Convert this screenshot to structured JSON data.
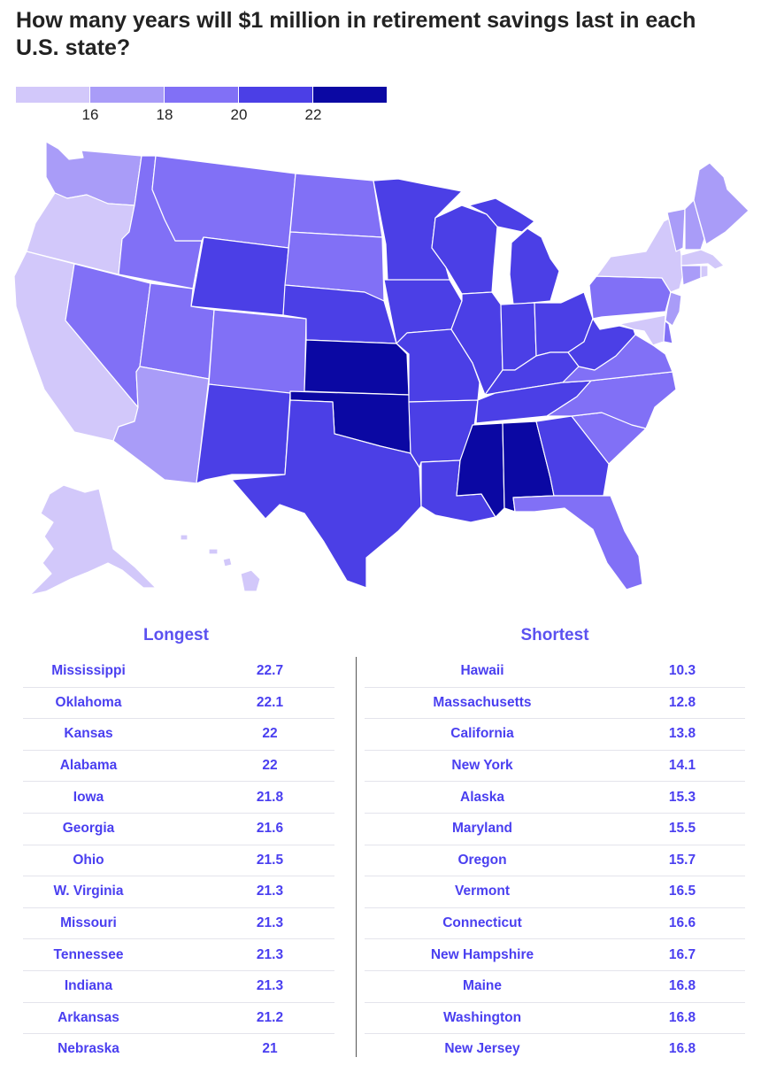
{
  "title": "How many years will $1 million in retirement savings last in each U.S. state?",
  "legend": {
    "colors": [
      "#d2c8fa",
      "#a99cf8",
      "#8170f6",
      "#4b3fe6",
      "#0b08a3"
    ],
    "ticks": [
      "16",
      "18",
      "20",
      "22"
    ]
  },
  "map": {
    "scale_colors": {
      "lightest": "#d2c8fa",
      "light": "#a99cf8",
      "mid": "#8170f6",
      "dark": "#4b3fe6",
      "darkest": "#0b08a3"
    },
    "states": [
      {
        "name": "Washington",
        "tier": "light"
      },
      {
        "name": "Oregon",
        "tier": "lightest"
      },
      {
        "name": "California",
        "tier": "lightest"
      },
      {
        "name": "Nevada",
        "tier": "mid"
      },
      {
        "name": "Idaho",
        "tier": "mid"
      },
      {
        "name": "Montana",
        "tier": "mid"
      },
      {
        "name": "Wyoming",
        "tier": "dark"
      },
      {
        "name": "Utah",
        "tier": "mid"
      },
      {
        "name": "Arizona",
        "tier": "light"
      },
      {
        "name": "Colorado",
        "tier": "mid"
      },
      {
        "name": "New Mexico",
        "tier": "dark"
      },
      {
        "name": "North Dakota",
        "tier": "mid"
      },
      {
        "name": "South Dakota",
        "tier": "mid"
      },
      {
        "name": "Nebraska",
        "tier": "dark"
      },
      {
        "name": "Kansas",
        "tier": "darkest"
      },
      {
        "name": "Oklahoma",
        "tier": "darkest"
      },
      {
        "name": "Texas",
        "tier": "dark"
      },
      {
        "name": "Minnesota",
        "tier": "dark"
      },
      {
        "name": "Iowa",
        "tier": "dark"
      },
      {
        "name": "Missouri",
        "tier": "dark"
      },
      {
        "name": "Arkansas",
        "tier": "dark"
      },
      {
        "name": "Louisiana",
        "tier": "dark"
      },
      {
        "name": "Wisconsin",
        "tier": "dark"
      },
      {
        "name": "Illinois",
        "tier": "dark"
      },
      {
        "name": "Michigan",
        "tier": "dark"
      },
      {
        "name": "Indiana",
        "tier": "dark"
      },
      {
        "name": "Ohio",
        "tier": "dark"
      },
      {
        "name": "Kentucky",
        "tier": "dark"
      },
      {
        "name": "Tennessee",
        "tier": "dark"
      },
      {
        "name": "Mississippi",
        "tier": "darkest"
      },
      {
        "name": "Alabama",
        "tier": "darkest"
      },
      {
        "name": "Georgia",
        "tier": "dark"
      },
      {
        "name": "Florida",
        "tier": "mid"
      },
      {
        "name": "South Carolina",
        "tier": "mid"
      },
      {
        "name": "North Carolina",
        "tier": "mid"
      },
      {
        "name": "Virginia",
        "tier": "mid"
      },
      {
        "name": "West Virginia",
        "tier": "dark"
      },
      {
        "name": "Pennsylvania",
        "tier": "mid"
      },
      {
        "name": "New York",
        "tier": "lightest"
      },
      {
        "name": "Vermont",
        "tier": "light"
      },
      {
        "name": "New Hampshire",
        "tier": "light"
      },
      {
        "name": "Maine",
        "tier": "light"
      },
      {
        "name": "Massachusetts",
        "tier": "lightest"
      },
      {
        "name": "Connecticut",
        "tier": "light"
      },
      {
        "name": "Rhode Island",
        "tier": "lightest"
      },
      {
        "name": "New Jersey",
        "tier": "light"
      },
      {
        "name": "Delaware",
        "tier": "mid"
      },
      {
        "name": "Maryland",
        "tier": "lightest"
      },
      {
        "name": "Alaska",
        "tier": "lightest"
      },
      {
        "name": "Hawaii",
        "tier": "lightest"
      }
    ]
  },
  "longest": {
    "heading": "Longest",
    "rows": [
      {
        "state": "Mississippi",
        "value": "22.7"
      },
      {
        "state": "Oklahoma",
        "value": "22.1"
      },
      {
        "state": "Kansas",
        "value": "22"
      },
      {
        "state": "Alabama",
        "value": "22"
      },
      {
        "state": "Iowa",
        "value": "21.8"
      },
      {
        "state": "Georgia",
        "value": "21.6"
      },
      {
        "state": "Ohio",
        "value": "21.5"
      },
      {
        "state": "W. Virginia",
        "value": "21.3"
      },
      {
        "state": "Missouri",
        "value": "21.3"
      },
      {
        "state": "Tennessee",
        "value": "21.3"
      },
      {
        "state": "Indiana",
        "value": "21.3"
      },
      {
        "state": "Arkansas",
        "value": "21.2"
      },
      {
        "state": "Nebraska",
        "value": "21"
      }
    ]
  },
  "shortest": {
    "heading": "Shortest",
    "rows": [
      {
        "state": "Hawaii",
        "value": "10.3"
      },
      {
        "state": "Massachusetts",
        "value": "12.8"
      },
      {
        "state": "California",
        "value": "13.8"
      },
      {
        "state": "New York",
        "value": "14.1"
      },
      {
        "state": "Alaska",
        "value": "15.3"
      },
      {
        "state": "Maryland",
        "value": "15.5"
      },
      {
        "state": "Oregon",
        "value": "15.7"
      },
      {
        "state": "Vermont",
        "value": "16.5"
      },
      {
        "state": "Connecticut",
        "value": "16.6"
      },
      {
        "state": "New Hampshire",
        "value": "16.7"
      },
      {
        "state": "Maine",
        "value": "16.8"
      },
      {
        "state": "Washington",
        "value": "16.8"
      },
      {
        "state": "New Jersey",
        "value": "16.8"
      }
    ]
  }
}
